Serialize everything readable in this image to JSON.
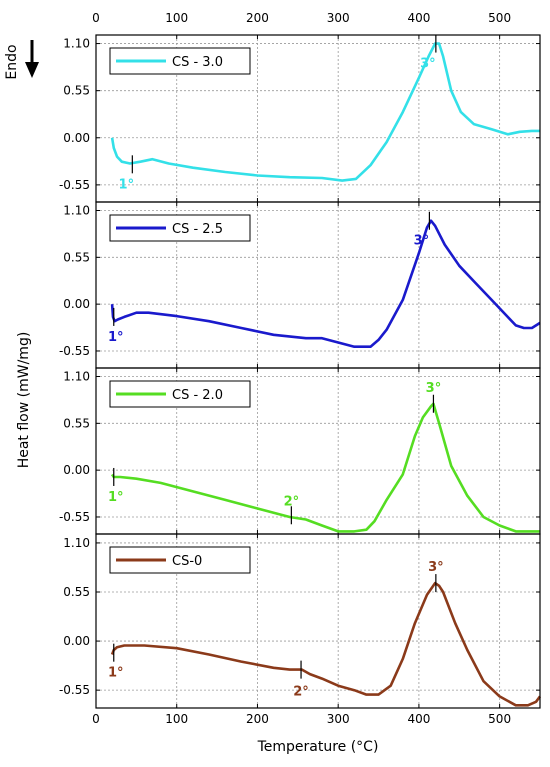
{
  "chart_data": {
    "type": "line",
    "xlabel": "Temperature (°C)",
    "ylabel": "Heat flow (mW/mg)",
    "corner_label": "Endo",
    "xlim": [
      0,
      550
    ],
    "x_ticks": [
      0,
      100,
      200,
      300,
      400,
      500
    ],
    "y_ticks": [
      -0.55,
      0.0,
      0.55,
      1.1
    ],
    "y_tick_labels": [
      "-0.55",
      "0.00",
      "0.55",
      "1.10"
    ],
    "grid": true,
    "panels": [
      {
        "name": "CS - 3.0",
        "color": "#33e0e8",
        "ylim": [
          -0.75,
          1.2
        ],
        "x": [
          20,
          22,
          26,
          32,
          42,
          55,
          70,
          90,
          120,
          160,
          200,
          240,
          280,
          305,
          322,
          340,
          360,
          380,
          400,
          412,
          420,
          425,
          430,
          440,
          452,
          468,
          490,
          510,
          525,
          540,
          550
        ],
        "y": [
          0.0,
          -0.12,
          -0.22,
          -0.28,
          -0.3,
          -0.28,
          -0.25,
          -0.3,
          -0.35,
          -0.4,
          -0.44,
          -0.46,
          -0.47,
          -0.5,
          -0.48,
          -0.32,
          -0.05,
          0.3,
          0.7,
          0.95,
          1.1,
          1.1,
          0.95,
          0.55,
          0.3,
          0.16,
          0.1,
          0.04,
          0.07,
          0.08,
          0.08
        ],
        "annotations": [
          {
            "label": "1°",
            "x": 45,
            "y": -0.31
          },
          {
            "label": "3°",
            "x": 421,
            "y": 1.1
          }
        ]
      },
      {
        "name": "CS - 2.5",
        "color": "#1a1acc",
        "ylim": [
          -0.75,
          1.2
        ],
        "x": [
          20,
          21,
          23,
          27,
          35,
          50,
          65,
          100,
          140,
          180,
          220,
          260,
          280,
          300,
          320,
          340,
          350,
          360,
          380,
          400,
          410,
          415,
          420,
          432,
          450,
          470,
          490,
          510,
          520,
          530,
          540,
          550
        ],
        "y": [
          0.0,
          -0.15,
          -0.2,
          -0.18,
          -0.15,
          -0.1,
          -0.1,
          -0.14,
          -0.2,
          -0.28,
          -0.36,
          -0.4,
          -0.4,
          -0.45,
          -0.5,
          -0.5,
          -0.42,
          -0.3,
          0.05,
          0.6,
          0.9,
          0.98,
          0.92,
          0.7,
          0.45,
          0.25,
          0.05,
          -0.15,
          -0.25,
          -0.28,
          -0.28,
          -0.22
        ],
        "annotations": [
          {
            "label": "1°",
            "x": 22,
            "y": -0.15
          },
          {
            "label": "3°",
            "x": 413,
            "y": 0.98
          }
        ]
      },
      {
        "name": "CS - 2.0",
        "color": "#55dd22",
        "ylim": [
          -0.75,
          1.2
        ],
        "x": [
          20,
          22,
          30,
          50,
          80,
          120,
          160,
          200,
          240,
          260,
          280,
          300,
          320,
          335,
          345,
          360,
          380,
          395,
          405,
          415,
          418,
          425,
          440,
          460,
          480,
          500,
          520,
          540,
          550
        ],
        "y": [
          -0.05,
          -0.08,
          -0.08,
          -0.1,
          -0.15,
          -0.25,
          -0.35,
          -0.45,
          -0.55,
          -0.58,
          -0.65,
          -0.72,
          -0.72,
          -0.7,
          -0.6,
          -0.35,
          -0.05,
          0.4,
          0.62,
          0.75,
          0.78,
          0.55,
          0.05,
          -0.3,
          -0.55,
          -0.65,
          -0.72,
          -0.72,
          -0.72
        ],
        "annotations": [
          {
            "label": "1°",
            "x": 22,
            "y": -0.08
          },
          {
            "label": "2°",
            "x": 242,
            "y": -0.53
          },
          {
            "label": "3°",
            "x": 418,
            "y": 0.78
          }
        ]
      },
      {
        "name": "CS-0",
        "color": "#8b3a1a",
        "ylim": [
          -0.75,
          1.2
        ],
        "x": [
          20,
          22,
          26,
          35,
          60,
          100,
          140,
          180,
          220,
          240,
          255,
          265,
          280,
          300,
          320,
          335,
          350,
          365,
          380,
          395,
          410,
          420,
          425,
          430,
          445,
          460,
          480,
          500,
          520,
          535,
          545,
          550
        ],
        "y": [
          -0.15,
          -0.1,
          -0.07,
          -0.05,
          -0.05,
          -0.08,
          -0.15,
          -0.23,
          -0.3,
          -0.32,
          -0.32,
          -0.37,
          -0.42,
          -0.5,
          -0.55,
          -0.6,
          -0.6,
          -0.5,
          -0.2,
          0.2,
          0.52,
          0.65,
          0.62,
          0.55,
          0.2,
          -0.1,
          -0.45,
          -0.62,
          -0.72,
          -0.72,
          -0.68,
          -0.62
        ],
        "annotations": [
          {
            "label": "1°",
            "x": 22,
            "y": -0.13
          },
          {
            "label": "2°",
            "x": 254,
            "y": -0.32
          },
          {
            "label": "3°",
            "x": 421,
            "y": 0.65
          }
        ]
      }
    ]
  }
}
